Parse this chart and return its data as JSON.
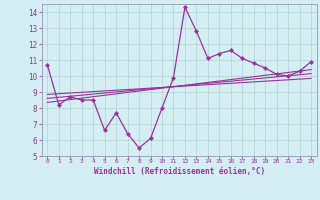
{
  "xlabel": "Windchill (Refroidissement éolien,°C)",
  "plot_bg_color": "#d4eef4",
  "fig_bg_color": "#d4eef4",
  "label_bg_color": "#b8dce8",
  "line_color": "#993399",
  "grid_color": "#b0d4d0",
  "xlim": [
    -0.5,
    23.5
  ],
  "ylim": [
    5,
    14.5
  ],
  "yticks": [
    5,
    6,
    7,
    8,
    9,
    10,
    11,
    12,
    13,
    14
  ],
  "xticks": [
    0,
    1,
    2,
    3,
    4,
    5,
    6,
    7,
    8,
    9,
    10,
    11,
    12,
    13,
    14,
    15,
    16,
    17,
    18,
    19,
    20,
    21,
    22,
    23
  ],
  "main_x": [
    0,
    1,
    2,
    3,
    4,
    5,
    6,
    7,
    8,
    9,
    10,
    11,
    12,
    13,
    14,
    15,
    16,
    17,
    18,
    19,
    20,
    21,
    22,
    23
  ],
  "main_y": [
    10.7,
    8.2,
    8.7,
    8.5,
    8.5,
    6.6,
    7.7,
    6.4,
    5.5,
    6.1,
    8.0,
    9.9,
    14.3,
    12.8,
    11.1,
    11.4,
    11.6,
    11.1,
    10.8,
    10.5,
    10.1,
    10.0,
    10.3,
    10.9
  ],
  "trend1_x": [
    0,
    23
  ],
  "trend1_y": [
    8.35,
    10.4
  ],
  "trend2_x": [
    0,
    23
  ],
  "trend2_y": [
    8.6,
    10.15
  ],
  "trend3_x": [
    0,
    23
  ],
  "trend3_y": [
    8.85,
    9.85
  ]
}
